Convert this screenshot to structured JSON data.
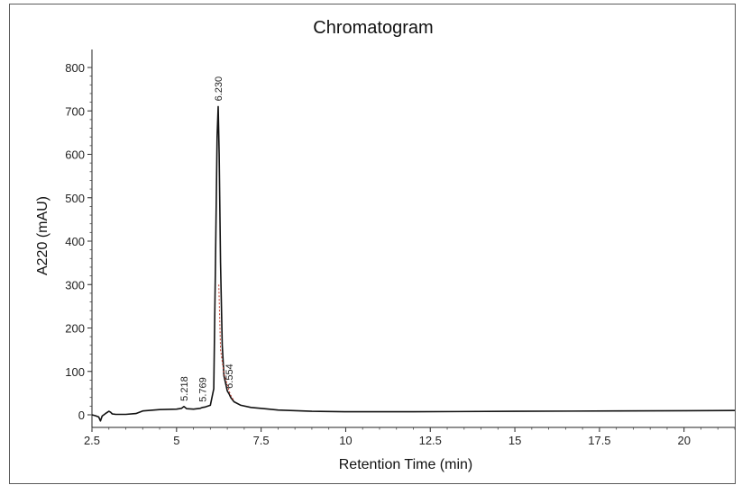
{
  "chart_data": {
    "type": "line",
    "title": "Chromatogram",
    "xlabel": "Retention Time (min)",
    "ylabel": "A220 (mAU)",
    "xlim": [
      2.5,
      21.5
    ],
    "ylim": [
      -15,
      840
    ],
    "x_ticks": [
      2.5,
      5,
      7.5,
      10,
      12.5,
      15,
      17.5,
      20
    ],
    "x_tick_labels": [
      "2.5",
      "5",
      "7.5",
      "10",
      "12.5",
      "15",
      "17.5",
      "20"
    ],
    "y_ticks": [
      0,
      100,
      200,
      300,
      400,
      500,
      600,
      700,
      800
    ],
    "y_tick_labels": [
      "0",
      "100",
      "200",
      "300",
      "400",
      "500",
      "600",
      "700",
      "800"
    ],
    "grid": false,
    "legend": "none",
    "series": [
      {
        "color": "#111111",
        "x": [
          2.5,
          2.6,
          2.7,
          2.75,
          2.8,
          2.9,
          3.0,
          3.05,
          3.1,
          3.2,
          3.5,
          3.8,
          4.0,
          4.5,
          5.0,
          5.15,
          5.218,
          5.3,
          5.5,
          5.7,
          5.769,
          5.85,
          6.0,
          6.1,
          6.15,
          6.2,
          6.23,
          6.26,
          6.3,
          6.35,
          6.4,
          6.5,
          6.554,
          6.6,
          6.7,
          6.9,
          7.2,
          7.6,
          8.0,
          9.0,
          10.0,
          12.0,
          15.0,
          18.0,
          21.5
        ],
        "values": [
          0,
          -2,
          -5,
          -14,
          -3,
          3,
          8,
          6,
          2,
          1,
          1,
          3,
          9,
          12,
          13,
          15,
          19,
          14,
          13,
          15,
          17,
          18,
          22,
          60,
          350,
          640,
          710,
          600,
          350,
          160,
          90,
          55,
          48,
          40,
          30,
          22,
          17,
          14,
          11,
          8,
          7,
          7,
          8,
          9,
          10
        ]
      },
      {
        "color": "#c0392b",
        "dashed": true,
        "x": [
          6.25,
          6.3,
          6.4,
          6.5,
          6.554,
          6.6,
          6.7
        ],
        "values": [
          300,
          150,
          95,
          70,
          55,
          45,
          32
        ]
      }
    ],
    "peak_labels": [
      {
        "x": 5.218,
        "y": 19,
        "label": "5.218"
      },
      {
        "x": 5.769,
        "y": 17,
        "label": "5.769"
      },
      {
        "x": 6.23,
        "y": 710,
        "label": "6.230"
      },
      {
        "x": 6.554,
        "y": 48,
        "label": "6.554"
      }
    ]
  }
}
